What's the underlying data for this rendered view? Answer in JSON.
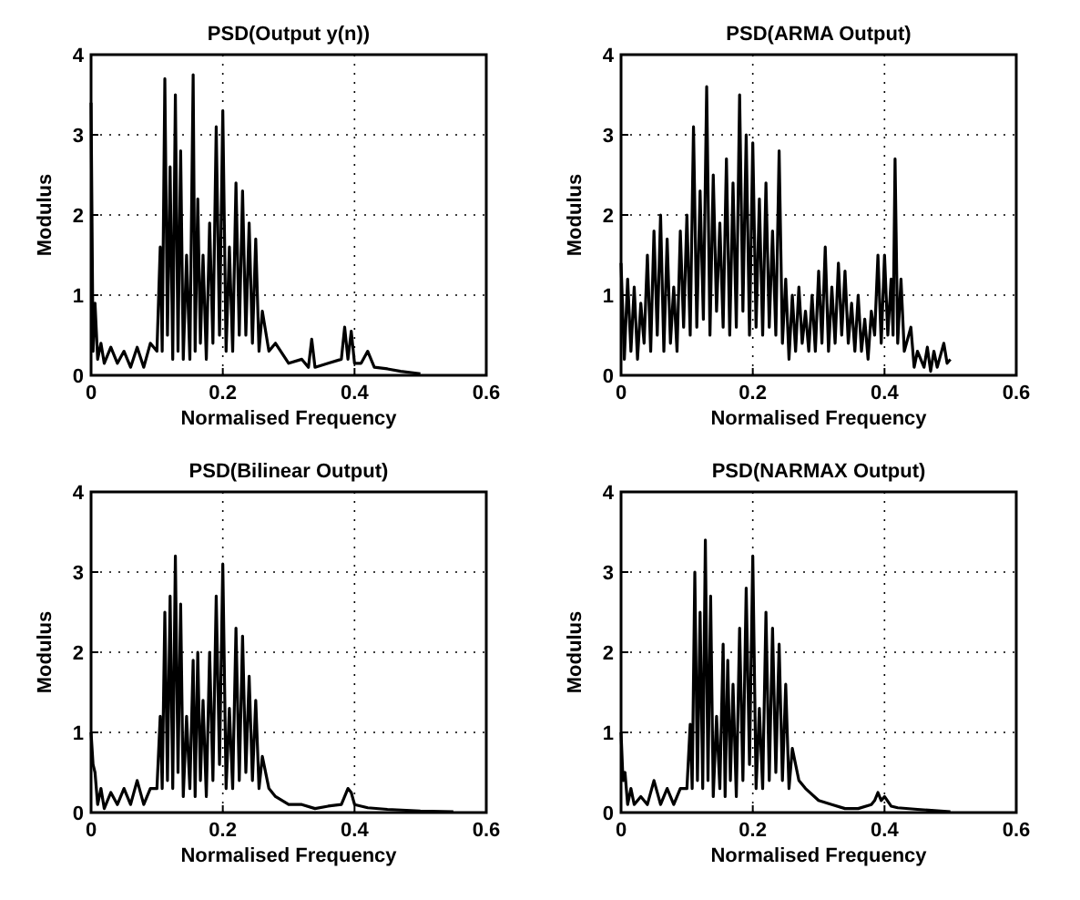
{
  "chart_data": [
    {
      "type": "line",
      "title": "PSD(Output y(n))",
      "xlabel": "Normalised Frequency",
      "ylabel": "Modulus",
      "xlim": [
        0,
        0.6
      ],
      "ylim": [
        0,
        4
      ],
      "xticks": [
        0,
        0.2,
        0.4,
        0.6
      ],
      "yticks": [
        0,
        1,
        2,
        3,
        4
      ],
      "grid": true,
      "x": [
        0,
        0.003,
        0.006,
        0.01,
        0.015,
        0.02,
        0.03,
        0.04,
        0.05,
        0.06,
        0.07,
        0.08,
        0.09,
        0.1,
        0.105,
        0.108,
        0.112,
        0.116,
        0.12,
        0.124,
        0.128,
        0.132,
        0.136,
        0.14,
        0.145,
        0.15,
        0.155,
        0.158,
        0.162,
        0.166,
        0.17,
        0.175,
        0.18,
        0.185,
        0.19,
        0.195,
        0.2,
        0.205,
        0.21,
        0.215,
        0.22,
        0.225,
        0.23,
        0.235,
        0.24,
        0.245,
        0.25,
        0.255,
        0.26,
        0.27,
        0.28,
        0.3,
        0.32,
        0.33,
        0.335,
        0.34,
        0.36,
        0.38,
        0.385,
        0.39,
        0.395,
        0.4,
        0.41,
        0.42,
        0.43,
        0.45,
        0.47,
        0.5
      ],
      "series": [
        {
          "color": "#000000",
          "values": [
            3.4,
            0.3,
            0.9,
            0.2,
            0.4,
            0.15,
            0.35,
            0.15,
            0.3,
            0.1,
            0.35,
            0.1,
            0.4,
            0.3,
            1.6,
            0.3,
            3.7,
            0.5,
            2.6,
            0.2,
            3.5,
            0.3,
            2.8,
            0.2,
            1.5,
            0.2,
            3.75,
            0.3,
            2.2,
            0.4,
            1.5,
            0.2,
            1.9,
            0.4,
            3.1,
            0.5,
            3.3,
            0.3,
            1.6,
            0.3,
            2.4,
            0.5,
            2.3,
            0.5,
            1.9,
            0.4,
            1.7,
            0.3,
            0.8,
            0.3,
            0.4,
            0.15,
            0.2,
            0.1,
            0.45,
            0.1,
            0.15,
            0.2,
            0.6,
            0.2,
            0.55,
            0.15,
            0.15,
            0.3,
            0.1,
            0.08,
            0.05,
            0.02
          ]
        }
      ]
    },
    {
      "type": "line",
      "title": "PSD(ARMA Output)",
      "xlabel": "Normalised Frequency",
      "ylabel": "Modulus",
      "xlim": [
        0,
        0.6
      ],
      "ylim": [
        0,
        4
      ],
      "xticks": [
        0,
        0.2,
        0.4,
        0.6
      ],
      "yticks": [
        0,
        1,
        2,
        3,
        4
      ],
      "grid": true,
      "x": [
        0,
        0.005,
        0.01,
        0.015,
        0.02,
        0.025,
        0.03,
        0.035,
        0.04,
        0.045,
        0.05,
        0.055,
        0.06,
        0.065,
        0.07,
        0.075,
        0.08,
        0.085,
        0.09,
        0.095,
        0.1,
        0.105,
        0.11,
        0.115,
        0.12,
        0.125,
        0.13,
        0.135,
        0.14,
        0.145,
        0.15,
        0.155,
        0.16,
        0.165,
        0.17,
        0.175,
        0.18,
        0.185,
        0.19,
        0.195,
        0.2,
        0.205,
        0.21,
        0.215,
        0.22,
        0.225,
        0.23,
        0.235,
        0.24,
        0.245,
        0.25,
        0.255,
        0.26,
        0.265,
        0.27,
        0.275,
        0.28,
        0.285,
        0.29,
        0.295,
        0.3,
        0.305,
        0.31,
        0.315,
        0.32,
        0.325,
        0.33,
        0.335,
        0.34,
        0.345,
        0.35,
        0.355,
        0.36,
        0.365,
        0.37,
        0.375,
        0.38,
        0.385,
        0.39,
        0.395,
        0.4,
        0.405,
        0.41,
        0.413,
        0.416,
        0.42,
        0.425,
        0.43,
        0.44,
        0.445,
        0.45,
        0.46,
        0.465,
        0.47,
        0.475,
        0.48,
        0.49,
        0.495,
        0.5
      ],
      "series": [
        {
          "color": "#000000",
          "values": [
            1.4,
            0.2,
            1.2,
            0.3,
            1.1,
            0.2,
            0.9,
            0.4,
            1.5,
            0.3,
            1.8,
            0.5,
            2.0,
            0.3,
            1.7,
            0.4,
            1.1,
            0.3,
            1.8,
            0.6,
            2.0,
            0.5,
            3.1,
            0.6,
            2.3,
            0.7,
            3.6,
            0.5,
            2.5,
            0.8,
            1.9,
            0.6,
            2.7,
            0.5,
            2.4,
            0.6,
            3.5,
            0.8,
            3.0,
            0.5,
            2.9,
            0.6,
            2.2,
            0.5,
            2.4,
            0.6,
            1.8,
            0.5,
            2.8,
            0.4,
            1.2,
            0.2,
            1.0,
            0.3,
            1.1,
            0.4,
            0.8,
            0.3,
            1.0,
            0.3,
            1.3,
            0.4,
            1.6,
            0.3,
            1.1,
            0.4,
            1.4,
            0.5,
            1.3,
            0.4,
            0.9,
            0.3,
            1.0,
            0.3,
            0.7,
            0.2,
            0.8,
            0.5,
            1.5,
            0.4,
            1.5,
            0.5,
            1.2,
            0.5,
            2.7,
            0.4,
            1.2,
            0.3,
            0.6,
            0.1,
            0.3,
            0.1,
            0.35,
            0.05,
            0.3,
            0.1,
            0.4,
            0.15,
            0.2
          ]
        }
      ]
    },
    {
      "type": "line",
      "title": "PSD(Bilinear Output)",
      "xlabel": "Normalised Frequency",
      "ylabel": "Modulus",
      "xlim": [
        0,
        0.6
      ],
      "ylim": [
        0,
        4
      ],
      "xticks": [
        0,
        0.2,
        0.4,
        0.6
      ],
      "yticks": [
        0,
        1,
        2,
        3,
        4
      ],
      "grid": true,
      "x": [
        0,
        0.003,
        0.006,
        0.01,
        0.015,
        0.02,
        0.03,
        0.04,
        0.05,
        0.06,
        0.07,
        0.08,
        0.09,
        0.1,
        0.105,
        0.108,
        0.112,
        0.116,
        0.12,
        0.124,
        0.128,
        0.132,
        0.136,
        0.14,
        0.145,
        0.15,
        0.155,
        0.158,
        0.162,
        0.166,
        0.17,
        0.175,
        0.18,
        0.185,
        0.19,
        0.195,
        0.2,
        0.205,
        0.21,
        0.215,
        0.22,
        0.225,
        0.23,
        0.235,
        0.24,
        0.245,
        0.25,
        0.255,
        0.26,
        0.27,
        0.28,
        0.3,
        0.32,
        0.34,
        0.36,
        0.38,
        0.385,
        0.39,
        0.395,
        0.4,
        0.41,
        0.42,
        0.45,
        0.5,
        0.55
      ],
      "series": [
        {
          "color": "#000000",
          "values": [
            1.0,
            0.6,
            0.5,
            0.1,
            0.3,
            0.05,
            0.25,
            0.1,
            0.3,
            0.1,
            0.4,
            0.1,
            0.3,
            0.3,
            1.2,
            0.3,
            2.5,
            0.4,
            2.7,
            0.3,
            3.2,
            0.5,
            2.6,
            0.2,
            1.2,
            0.3,
            1.9,
            0.2,
            2.0,
            0.4,
            1.4,
            0.2,
            2.0,
            0.4,
            2.7,
            0.6,
            3.1,
            0.3,
            1.3,
            0.3,
            2.3,
            0.4,
            2.2,
            0.5,
            1.7,
            0.4,
            1.4,
            0.3,
            0.7,
            0.3,
            0.2,
            0.1,
            0.1,
            0.05,
            0.08,
            0.1,
            0.2,
            0.3,
            0.25,
            0.1,
            0.08,
            0.06,
            0.04,
            0.02,
            0.01
          ]
        }
      ]
    },
    {
      "type": "line",
      "title": "PSD(NARMAX Output)",
      "xlabel": "Normalised Frequency",
      "ylabel": "Modulus",
      "xlim": [
        0,
        0.6
      ],
      "ylim": [
        0,
        4
      ],
      "xticks": [
        0,
        0.2,
        0.4,
        0.6
      ],
      "yticks": [
        0,
        1,
        2,
        3,
        4
      ],
      "grid": true,
      "x": [
        0,
        0.003,
        0.006,
        0.01,
        0.015,
        0.02,
        0.03,
        0.04,
        0.05,
        0.06,
        0.07,
        0.08,
        0.09,
        0.1,
        0.105,
        0.108,
        0.112,
        0.116,
        0.12,
        0.124,
        0.128,
        0.132,
        0.136,
        0.14,
        0.145,
        0.15,
        0.155,
        0.158,
        0.162,
        0.166,
        0.17,
        0.175,
        0.18,
        0.185,
        0.19,
        0.195,
        0.2,
        0.205,
        0.21,
        0.215,
        0.22,
        0.225,
        0.23,
        0.235,
        0.24,
        0.245,
        0.25,
        0.255,
        0.26,
        0.27,
        0.28,
        0.3,
        0.32,
        0.34,
        0.36,
        0.38,
        0.385,
        0.39,
        0.395,
        0.4,
        0.41,
        0.42,
        0.45,
        0.5
      ],
      "series": [
        {
          "color": "#000000",
          "values": [
            1.0,
            0.4,
            0.5,
            0.1,
            0.3,
            0.1,
            0.2,
            0.1,
            0.4,
            0.1,
            0.3,
            0.1,
            0.3,
            0.3,
            1.1,
            0.3,
            3.0,
            0.4,
            2.5,
            0.3,
            3.4,
            0.4,
            2.7,
            0.2,
            1.2,
            0.3,
            2.1,
            0.2,
            1.9,
            0.4,
            1.6,
            0.2,
            2.3,
            0.4,
            2.8,
            0.6,
            3.2,
            0.3,
            1.3,
            0.3,
            2.5,
            0.4,
            2.3,
            0.5,
            2.1,
            0.4,
            1.6,
            0.3,
            0.8,
            0.4,
            0.3,
            0.15,
            0.1,
            0.05,
            0.05,
            0.1,
            0.15,
            0.25,
            0.15,
            0.2,
            0.08,
            0.06,
            0.04,
            0.01
          ]
        }
      ]
    }
  ]
}
